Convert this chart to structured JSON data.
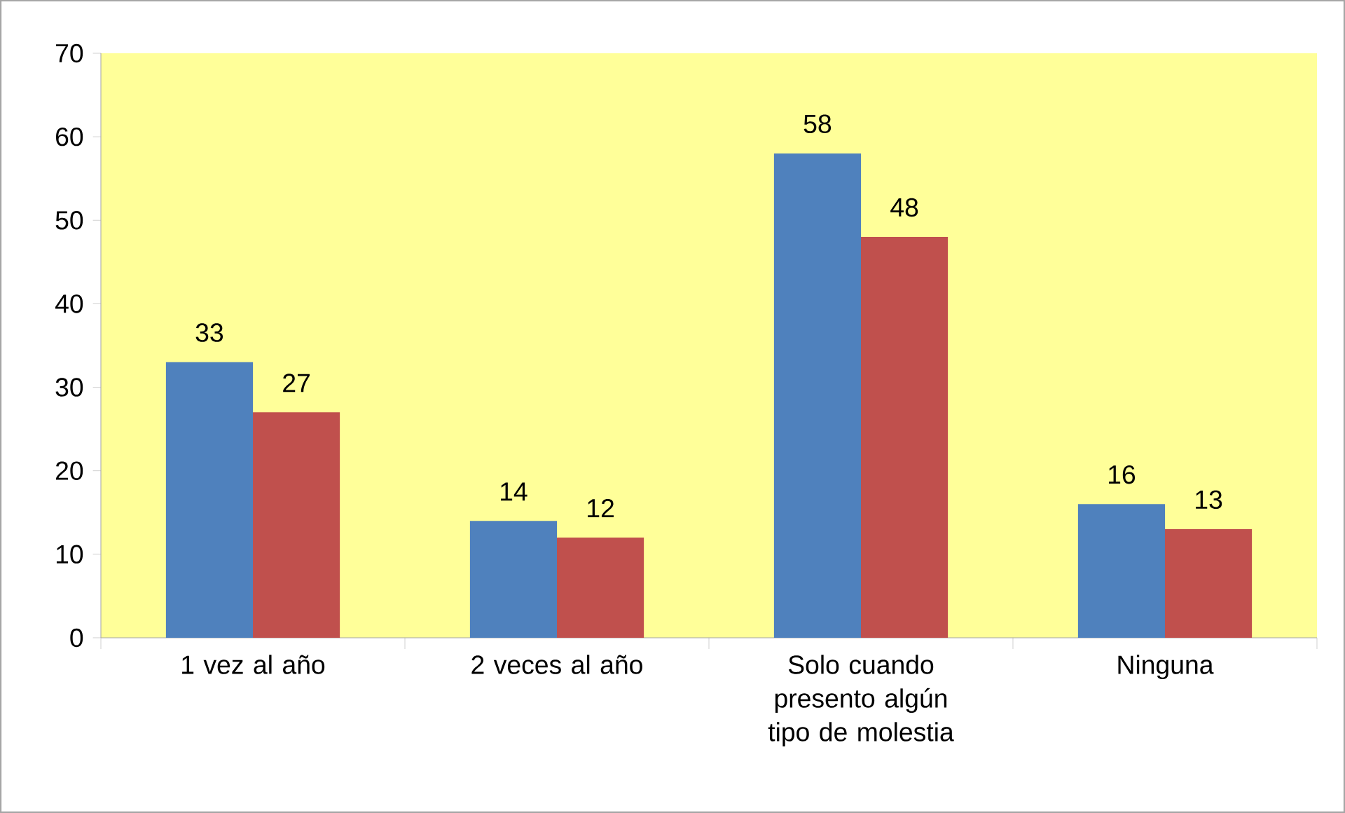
{
  "chart_data": {
    "type": "bar",
    "categories": [
      "1 vez al año",
      "2 veces al año",
      "Solo cuando presento algún tipo de molestia",
      "Ninguna"
    ],
    "series": [
      {
        "color": "#4f81bd",
        "values": [
          33,
          14,
          58,
          16
        ]
      },
      {
        "color": "#c0504d",
        "values": [
          27,
          12,
          48,
          13
        ]
      }
    ],
    "ylim": [
      0,
      70
    ],
    "yticks": [
      0,
      10,
      20,
      30,
      40,
      50,
      60,
      70
    ],
    "data_labels": true
  }
}
